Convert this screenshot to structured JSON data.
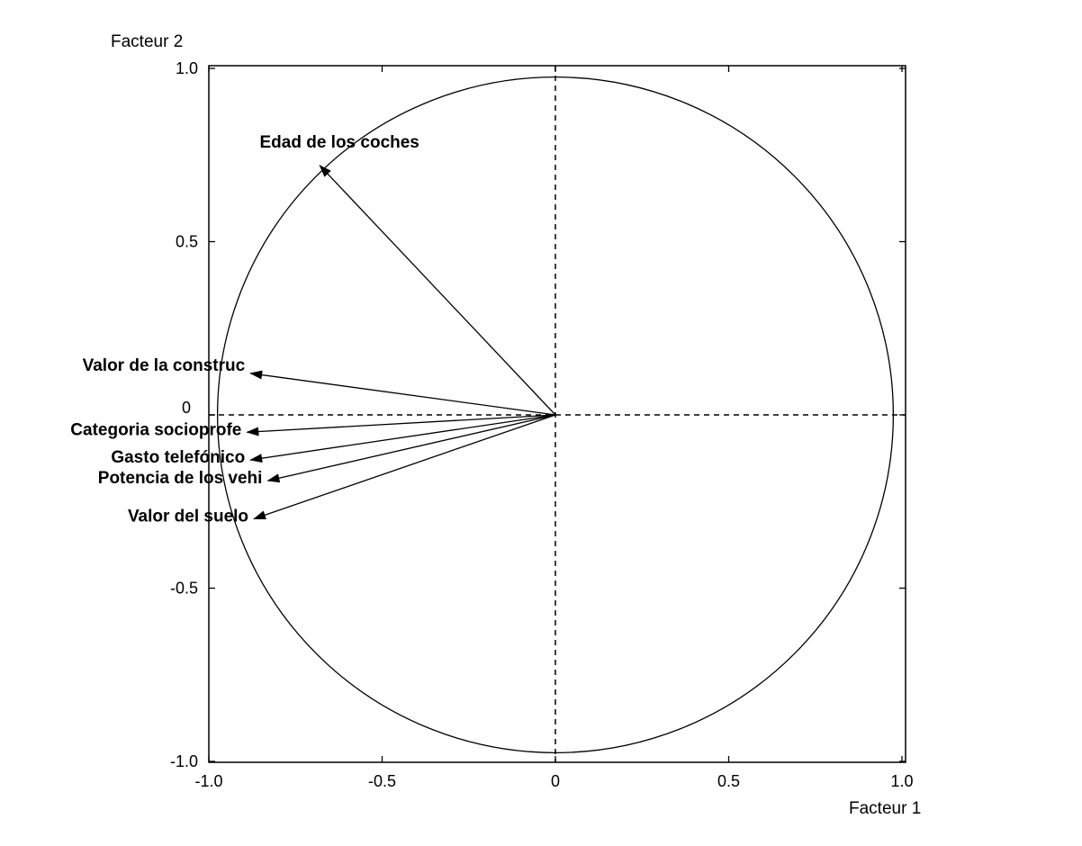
{
  "chart_data": {
    "type": "correlation-circle",
    "xlabel": "Facteur 1",
    "ylabel": "Facteur 2",
    "xlim": [
      -1.0,
      1.0
    ],
    "ylim": [
      -1.0,
      1.0
    ],
    "xticks": [
      {
        "value": -1.0,
        "label": "-1.0"
      },
      {
        "value": -0.5,
        "label": "-0.5"
      },
      {
        "value": 0,
        "label": "0"
      },
      {
        "value": 0.5,
        "label": "0.5"
      },
      {
        "value": 1.0,
        "label": "1.0"
      }
    ],
    "yticks": [
      {
        "value": 1.0,
        "label": "1.0"
      },
      {
        "value": 0.5,
        "label": "0.5"
      },
      {
        "value": 0,
        "label": "0"
      },
      {
        "value": -0.5,
        "label": "-0.5"
      },
      {
        "value": -1.0,
        "label": "-1.0"
      }
    ],
    "circle_radius": 1.0,
    "variables": [
      {
        "name": "Edad de los coches",
        "x": -0.68,
        "y": 0.72
      },
      {
        "name": "Valor de la construc",
        "x": -0.88,
        "y": 0.12
      },
      {
        "name": "Categoria socioprofe",
        "x": -0.89,
        "y": -0.05
      },
      {
        "name": "Gasto telefónico",
        "x": -0.88,
        "y": -0.13
      },
      {
        "name": "Potencia de los vehi",
        "x": -0.83,
        "y": -0.19
      },
      {
        "name": "Valor del suelo",
        "x": -0.87,
        "y": -0.3
      }
    ]
  }
}
